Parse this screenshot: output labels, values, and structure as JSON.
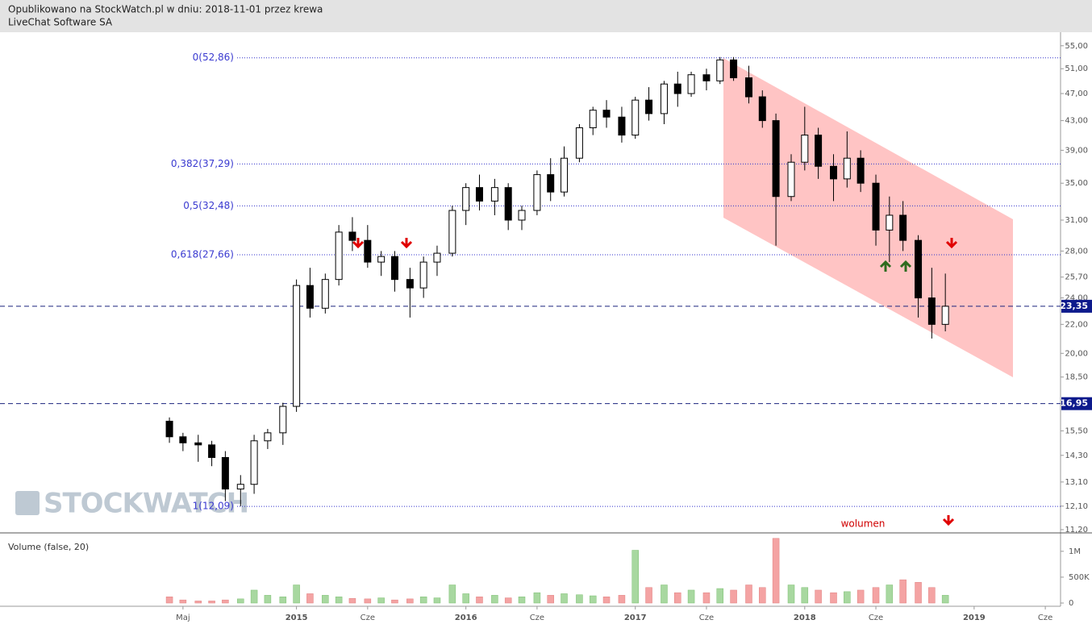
{
  "header": {
    "line1": "Opublikowano na StockWatch.pl w dniu: 2018-11-01 przez krewa",
    "line2": "LiveChat Software SA"
  },
  "watermark": "STOCKWATCH",
  "chart_data": [
    {
      "type": "candlestick",
      "log_y": true,
      "annotation": "wolumen",
      "x": [
        2014.25,
        2014.33,
        2014.42,
        2014.5,
        2014.58,
        2014.67,
        2014.75,
        2014.83,
        2014.92,
        2015,
        2015.08,
        2015.17,
        2015.25,
        2015.33,
        2015.42,
        2015.5,
        2015.58,
        2015.67,
        2015.75,
        2015.83,
        2015.92,
        2016,
        2016.08,
        2016.17,
        2016.25,
        2016.33,
        2016.42,
        2016.5,
        2016.58,
        2016.67,
        2016.75,
        2016.83,
        2016.92,
        2017,
        2017.08,
        2017.17,
        2017.25,
        2017.33,
        2017.42,
        2017.5,
        2017.58,
        2017.67,
        2017.75,
        2017.83,
        2017.92,
        2018,
        2018.08,
        2018.17,
        2018.25,
        2018.33,
        2018.42,
        2018.5,
        2018.58,
        2018.67,
        2018.75,
        2018.83
      ],
      "open": [
        16,
        15.2,
        14.9,
        14.8,
        14.2,
        12.8,
        13,
        15,
        15.4,
        16.8,
        25,
        23.2,
        25.5,
        29.8,
        29,
        27,
        27.5,
        25.5,
        24.8,
        27,
        27.8,
        32,
        34.5,
        33,
        34.5,
        31,
        32,
        36,
        34,
        38,
        42,
        44.5,
        43.5,
        41,
        46,
        44,
        48.5,
        47,
        50,
        49,
        52.5,
        49.5,
        46.5,
        43,
        33.5,
        37.5,
        41,
        37,
        35.5,
        38,
        35,
        30,
        31.5,
        29,
        24,
        22
      ],
      "high": [
        16.2,
        15.4,
        15.3,
        15,
        14.5,
        13.4,
        15.3,
        15.6,
        17,
        25.5,
        26.5,
        26,
        30.5,
        31.3,
        30.5,
        28,
        28,
        26.5,
        27.5,
        28.5,
        32.5,
        35,
        36,
        35.5,
        35,
        32.5,
        36.5,
        38,
        39.5,
        42.5,
        45,
        46,
        45,
        46.5,
        48,
        49,
        50.5,
        50.5,
        51,
        53,
        53,
        51.5,
        47.5,
        44,
        38.5,
        45,
        42,
        38.5,
        41.5,
        39,
        36,
        33.5,
        33,
        29.5,
        26.5,
        26
      ],
      "low": [
        14.9,
        14.5,
        14,
        13.8,
        12.3,
        12.1,
        12.6,
        14.6,
        14.8,
        16.5,
        22.5,
        22.8,
        25,
        28,
        26.5,
        25.8,
        24.5,
        22.5,
        24,
        25.8,
        27.5,
        30.5,
        32,
        31.5,
        30,
        30,
        31.5,
        33,
        33.5,
        37.5,
        41,
        42,
        40,
        40.5,
        43,
        42.5,
        45,
        46.5,
        47.5,
        48.5,
        49,
        45.5,
        42,
        28.5,
        33,
        36.5,
        35.5,
        33,
        34.5,
        34,
        28.5,
        27,
        28,
        22.5,
        21,
        21.5
      ],
      "close": [
        15.2,
        14.9,
        14.8,
        14.2,
        12.8,
        13,
        15,
        15.4,
        16.8,
        25,
        23.2,
        25.5,
        29.8,
        29,
        27,
        27.5,
        25.5,
        24.8,
        27,
        27.8,
        32,
        34.5,
        33,
        34.5,
        31,
        32,
        36,
        34,
        38,
        42,
        44.5,
        43.5,
        41,
        46,
        44,
        48.5,
        47,
        50,
        49,
        52.5,
        49.5,
        46.5,
        43,
        33.5,
        37.5,
        41,
        37,
        35.5,
        38,
        35,
        30,
        31.5,
        29,
        24,
        22,
        23.35
      ],
      "xlim": [
        2013.25,
        2019.51
      ],
      "xticks": [
        {
          "value": 2014.33,
          "label": "Maj"
        },
        2015,
        {
          "value": 2015.42,
          "label": "Cze"
        },
        2016,
        {
          "value": 2016.42,
          "label": "Cze"
        },
        2017,
        {
          "value": 2017.42,
          "label": "Cze"
        },
        2018,
        {
          "value": 2018.42,
          "label": "Cze"
        },
        2019,
        {
          "value": 2019.42,
          "label": "Cze"
        }
      ],
      "ylim": [
        11.11,
        57.5
      ],
      "yticks": [
        {
          "value": 55,
          "label": "55,00"
        },
        {
          "value": 51,
          "label": "51,00"
        },
        {
          "value": 47,
          "label": "47,00"
        },
        {
          "value": 43,
          "label": "43,00"
        },
        {
          "value": 39,
          "label": "39,00"
        },
        {
          "value": 35,
          "label": "35,00"
        },
        {
          "value": 31,
          "label": "31,00"
        },
        {
          "value": 28,
          "label": "28,00"
        },
        {
          "value": 25.7,
          "label": "25,70"
        },
        {
          "value": 24,
          "label": "24,00"
        },
        {
          "value": 22,
          "label": "22,00"
        },
        {
          "value": 20,
          "label": "20,00"
        },
        {
          "value": 18.5,
          "label": "18,50"
        },
        {
          "value": 15.5,
          "label": "15,50"
        },
        {
          "value": 14.3,
          "label": "14,30"
        },
        {
          "value": 13.1,
          "label": "13,10"
        },
        {
          "value": 12.1,
          "label": "12,10"
        },
        {
          "value": 11.2,
          "label": "11,20"
        }
      ],
      "levels": [
        {
          "value": 52.86,
          "label": "0(52,86)"
        },
        {
          "value": 37.29,
          "label": "0,382(37,29)"
        },
        {
          "value": 32.48,
          "label": "0,5(32,48)"
        },
        {
          "value": 27.66,
          "label": "0,618(27,66)"
        },
        {
          "value": 12.09,
          "label": "1(12,09)"
        }
      ],
      "price_lines": [
        {
          "value": 23.35,
          "label": "23,35"
        },
        {
          "value": 16.95,
          "label": "16,95"
        }
      ]
    },
    {
      "type": "bar",
      "title": "Volume (false, 20)",
      "up_color": "#a8d8a0",
      "down_color": "#f4a3a3",
      "values": [
        120000,
        60000,
        40000,
        40000,
        60000,
        80000,
        250000,
        150000,
        120000,
        350000,
        180000,
        150000,
        120000,
        90000,
        80000,
        100000,
        60000,
        80000,
        120000,
        100000,
        350000,
        180000,
        120000,
        150000,
        100000,
        120000,
        200000,
        150000,
        180000,
        160000,
        140000,
        120000,
        150000,
        1020000,
        300000,
        350000,
        200000,
        250000,
        200000,
        280000,
        250000,
        350000,
        300000,
        1250000,
        350000,
        300000,
        250000,
        200000,
        220000,
        250000,
        300000,
        350000,
        450000,
        400000,
        300000,
        150000
      ],
      "ylim": [
        0,
        1340000
      ],
      "yticks": [
        0,
        {
          "value": 500000,
          "label": "500K"
        },
        {
          "value": 1000000,
          "label": "1M"
        }
      ]
    }
  ]
}
